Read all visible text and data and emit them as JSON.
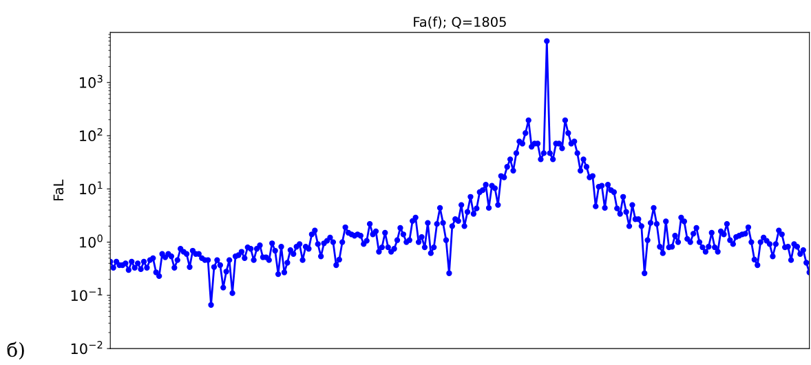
{
  "chart_data": {
    "type": "line",
    "title": "Fa(f); Q=1805",
    "ylabel": "FaL",
    "annotations": [
      "б)"
    ],
    "log": "y",
    "marker": "circle",
    "line_style": "solid",
    "grid": false,
    "tick_labels": "y",
    "ylim": [
      0.01,
      8700
    ],
    "yticks": [
      {
        "value": 0.01,
        "label": "10$^{−2}$"
      },
      {
        "value": 0.1,
        "label": "10$^{−1}$"
      },
      {
        "value": 1,
        "label": "10$^{0}$"
      },
      {
        "value": 10,
        "label": "10$^{1}$"
      },
      {
        "value": 100,
        "label": "10$^{2}$"
      },
      {
        "value": 1000,
        "label": "10$^{3}$"
      }
    ],
    "categories": [
      null,
      null,
      null,
      null,
      null,
      null,
      null,
      null,
      null,
      null,
      null,
      null,
      null,
      null,
      null,
      null,
      null,
      null,
      null,
      null,
      null,
      null,
      null,
      null,
      null,
      null,
      null,
      null,
      null,
      null,
      null,
      null,
      null,
      null,
      null,
      null,
      null,
      null,
      null,
      null,
      null,
      null,
      null,
      null,
      null,
      null,
      null,
      null,
      null,
      null,
      null,
      null,
      null,
      null,
      null,
      null,
      null,
      null,
      null,
      null,
      null,
      null,
      null,
      null,
      null,
      null,
      null,
      null,
      null,
      null,
      null,
      null,
      null,
      null,
      null,
      null,
      null,
      null,
      null,
      null,
      null,
      null,
      null,
      null,
      null,
      null,
      null,
      null,
      null,
      null,
      null,
      null,
      null,
      null,
      null,
      null,
      null,
      null,
      null,
      null,
      null,
      null,
      null,
      null,
      null,
      null,
      null,
      null,
      null,
      null,
      null,
      null,
      null,
      null,
      null,
      null,
      null,
      null,
      null,
      null,
      null,
      null,
      null,
      null,
      null,
      null,
      null,
      null,
      null,
      null,
      null,
      null,
      null,
      null,
      null,
      null,
      null,
      null,
      null,
      null,
      null,
      null,
      null,
      null,
      null,
      null,
      null,
      null,
      null,
      null,
      null,
      null,
      null,
      null,
      null,
      null,
      null,
      null,
      null,
      null,
      null,
      null,
      null,
      null,
      null,
      null,
      null,
      null,
      null,
      null,
      null,
      null,
      null,
      null,
      null,
      null,
      null,
      null,
      null,
      null,
      null,
      null,
      null,
      null,
      null,
      null,
      null,
      null,
      null,
      null,
      null,
      null,
      null,
      null,
      null,
      null,
      null,
      null,
      null,
      null,
      null,
      null,
      null,
      null,
      null,
      null,
      null,
      null,
      null,
      null,
      null,
      null,
      null,
      null,
      null,
      null,
      null,
      null,
      null,
      null,
      null,
      null,
      null,
      null,
      null,
      null,
      null,
      null,
      null,
      null
    ],
    "series": [
      {
        "color": "#0000ff",
        "values": [
          0.43,
          0.33,
          0.43,
          0.37,
          0.37,
          0.4,
          0.3,
          0.43,
          0.33,
          0.4,
          0.31,
          0.43,
          0.33,
          0.46,
          0.5,
          0.27,
          0.23,
          0.6,
          0.52,
          0.6,
          0.54,
          0.33,
          0.46,
          0.75,
          0.66,
          0.6,
          0.34,
          0.69,
          0.6,
          0.6,
          0.5,
          0.46,
          0.46,
          0.066,
          0.34,
          0.46,
          0.37,
          0.14,
          0.28,
          0.46,
          0.11,
          0.54,
          0.57,
          0.66,
          0.5,
          0.8,
          0.75,
          0.46,
          0.75,
          0.87,
          0.52,
          0.52,
          0.46,
          0.95,
          0.69,
          0.25,
          0.82,
          0.27,
          0.41,
          0.71,
          0.6,
          0.82,
          0.92,
          0.46,
          0.82,
          0.75,
          1.4,
          1.66,
          0.92,
          0.54,
          0.95,
          1.06,
          1.22,
          1.0,
          0.37,
          0.47,
          1.0,
          1.9,
          1.5,
          1.4,
          1.32,
          1.4,
          1.32,
          0.92,
          1.06,
          2.2,
          1.4,
          1.6,
          0.66,
          0.8,
          1.5,
          0.8,
          0.66,
          0.75,
          1.09,
          1.85,
          1.4,
          1.0,
          1.09,
          2.5,
          2.9,
          1.0,
          1.25,
          0.8,
          2.3,
          0.62,
          0.8,
          2.2,
          4.4,
          2.3,
          1.09,
          0.26,
          2.0,
          2.7,
          2.5,
          5,
          2.0,
          3.7,
          7.1,
          3.4,
          4.3,
          8.7,
          9.5,
          12,
          4.4,
          11.5,
          10.3,
          5,
          17.5,
          16.5,
          26,
          36,
          22,
          47,
          78,
          71,
          112,
          195,
          62,
          71,
          71,
          36,
          47,
          6000,
          47,
          36,
          71,
          71,
          58,
          195,
          112,
          71,
          78,
          47,
          22,
          36,
          26,
          16.5,
          17.5,
          4.7,
          11,
          11.5,
          4.4,
          12,
          9.5,
          8.7,
          4.3,
          3.4,
          7.1,
          3.7,
          2.0,
          5,
          2.7,
          2.7,
          2.0,
          0.26,
          1.09,
          2.3,
          4.4,
          2.2,
          0.82,
          0.62,
          2.45,
          0.8,
          0.82,
          1.32,
          1.0,
          2.9,
          2.45,
          1.15,
          1.0,
          1.44,
          1.85,
          1.0,
          0.8,
          0.66,
          0.82,
          1.5,
          0.8,
          0.66,
          1.6,
          1.4,
          2.2,
          1.09,
          0.92,
          1.25,
          1.32,
          1.4,
          1.44,
          1.9,
          1.0,
          0.47,
          0.37,
          1.0,
          1.22,
          1.06,
          0.92,
          0.54,
          0.92,
          1.66,
          1.4,
          0.8,
          0.82,
          0.46,
          0.92,
          0.82,
          0.6,
          0.71,
          0.41,
          0.27
        ]
      }
    ]
  }
}
